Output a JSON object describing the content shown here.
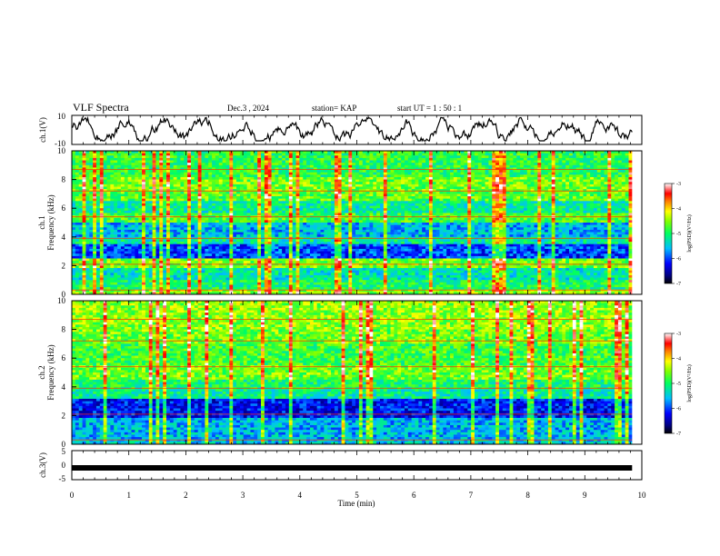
{
  "header": {
    "title": "VLF Spectra",
    "date": "Dec.3 , 2024",
    "station": "station= KAP",
    "start": "start UT =   1 : 50 : 1"
  },
  "colors": {
    "ink": "#000000",
    "spectrogram_scale": [
      "#000080",
      "#0000ff",
      "#00bfff",
      "#00ff80",
      "#80ff00",
      "#ffff00",
      "#ff8000",
      "#ff0000",
      "#ffffff"
    ]
  },
  "chart_data": [
    {
      "type": "line",
      "panel": "ch1-waveform",
      "ylabel": "ch.1(V)",
      "ylim": [
        -10,
        10
      ],
      "y_ticks": [
        "10",
        "-10"
      ],
      "xlim": [
        0,
        10
      ],
      "data_extent_min": 9.83,
      "description_values": {
        "typical_min": -8,
        "typical_max": 9
      }
    },
    {
      "type": "heatmap",
      "panel": "ch1-spectrogram",
      "ylabel": "ch.1\nFrequency (kHz)",
      "ylim": [
        0,
        10
      ],
      "y_ticks": [
        "0",
        "2",
        "4",
        "6",
        "8",
        "10"
      ],
      "xlim": [
        0,
        10
      ],
      "data_extent_min": 9.83,
      "colorbar": {
        "label": "log(PSD)(V²/Hz)",
        "range": [
          -7,
          -3
        ],
        "ticks": [
          "-3",
          "-4",
          "-5",
          "-6",
          "-7"
        ]
      },
      "bands": [
        {
          "from": 0.0,
          "to": 0.4,
          "level": -4.5
        },
        {
          "from": 0.4,
          "to": 1.0,
          "level": -5.0
        },
        {
          "from": 1.0,
          "to": 1.8,
          "level": -5.3
        },
        {
          "from": 1.8,
          "to": 2.5,
          "level": -4.6
        },
        {
          "from": 2.5,
          "to": 3.5,
          "level": -6.0
        },
        {
          "from": 3.5,
          "to": 4.0,
          "level": -5.2
        },
        {
          "from": 4.0,
          "to": 5.0,
          "level": -5.6
        },
        {
          "from": 5.0,
          "to": 5.6,
          "level": -4.8
        },
        {
          "from": 5.6,
          "to": 6.5,
          "level": -5.2
        },
        {
          "from": 6.5,
          "to": 7.2,
          "level": -4.7
        },
        {
          "from": 7.2,
          "to": 8.2,
          "level": -4.6
        },
        {
          "from": 8.2,
          "to": 10.0,
          "level": -4.9
        }
      ]
    },
    {
      "type": "heatmap",
      "panel": "ch2-spectrogram",
      "ylabel": "ch.2\nFrequency (kHz)",
      "ylim": [
        0,
        10
      ],
      "y_ticks": [
        "0",
        "2",
        "4",
        "6",
        "8",
        "10"
      ],
      "xlim": [
        0,
        10
      ],
      "data_extent_min": 9.83,
      "colorbar": {
        "label": "log(PSD)(V²/Hz)",
        "range": [
          -7,
          -3
        ],
        "ticks": [
          "-3",
          "-4",
          "-5",
          "-6",
          "-7"
        ]
      },
      "bands": [
        {
          "from": 0.0,
          "to": 0.3,
          "level": -5.5
        },
        {
          "from": 0.3,
          "to": 1.8,
          "level": -5.6
        },
        {
          "from": 1.8,
          "to": 3.1,
          "level": -6.2
        },
        {
          "from": 3.1,
          "to": 3.8,
          "level": -5.2
        },
        {
          "from": 3.8,
          "to": 4.5,
          "level": -5.0
        },
        {
          "from": 4.5,
          "to": 5.5,
          "level": -4.6
        },
        {
          "from": 5.5,
          "to": 7.0,
          "level": -4.8
        },
        {
          "from": 7.0,
          "to": 8.0,
          "level": -4.6
        },
        {
          "from": 8.0,
          "to": 10.0,
          "level": -4.5
        }
      ]
    },
    {
      "type": "line",
      "panel": "ch3-waveform",
      "ylabel": "ch.3(V)",
      "ylim": [
        -5,
        5
      ],
      "y_ticks": [
        "5",
        "0",
        "-5"
      ],
      "xlim": [
        0,
        10
      ],
      "data_extent_min": 9.83,
      "constant_value": -0.5,
      "band_halfwidth": 0.5
    },
    {
      "type": "axis",
      "panel": "time-axis",
      "xlabel": "Time (min)",
      "x_ticks": [
        "0",
        "1",
        "2",
        "3",
        "4",
        "5",
        "6",
        "7",
        "8",
        "9",
        "10"
      ]
    }
  ]
}
